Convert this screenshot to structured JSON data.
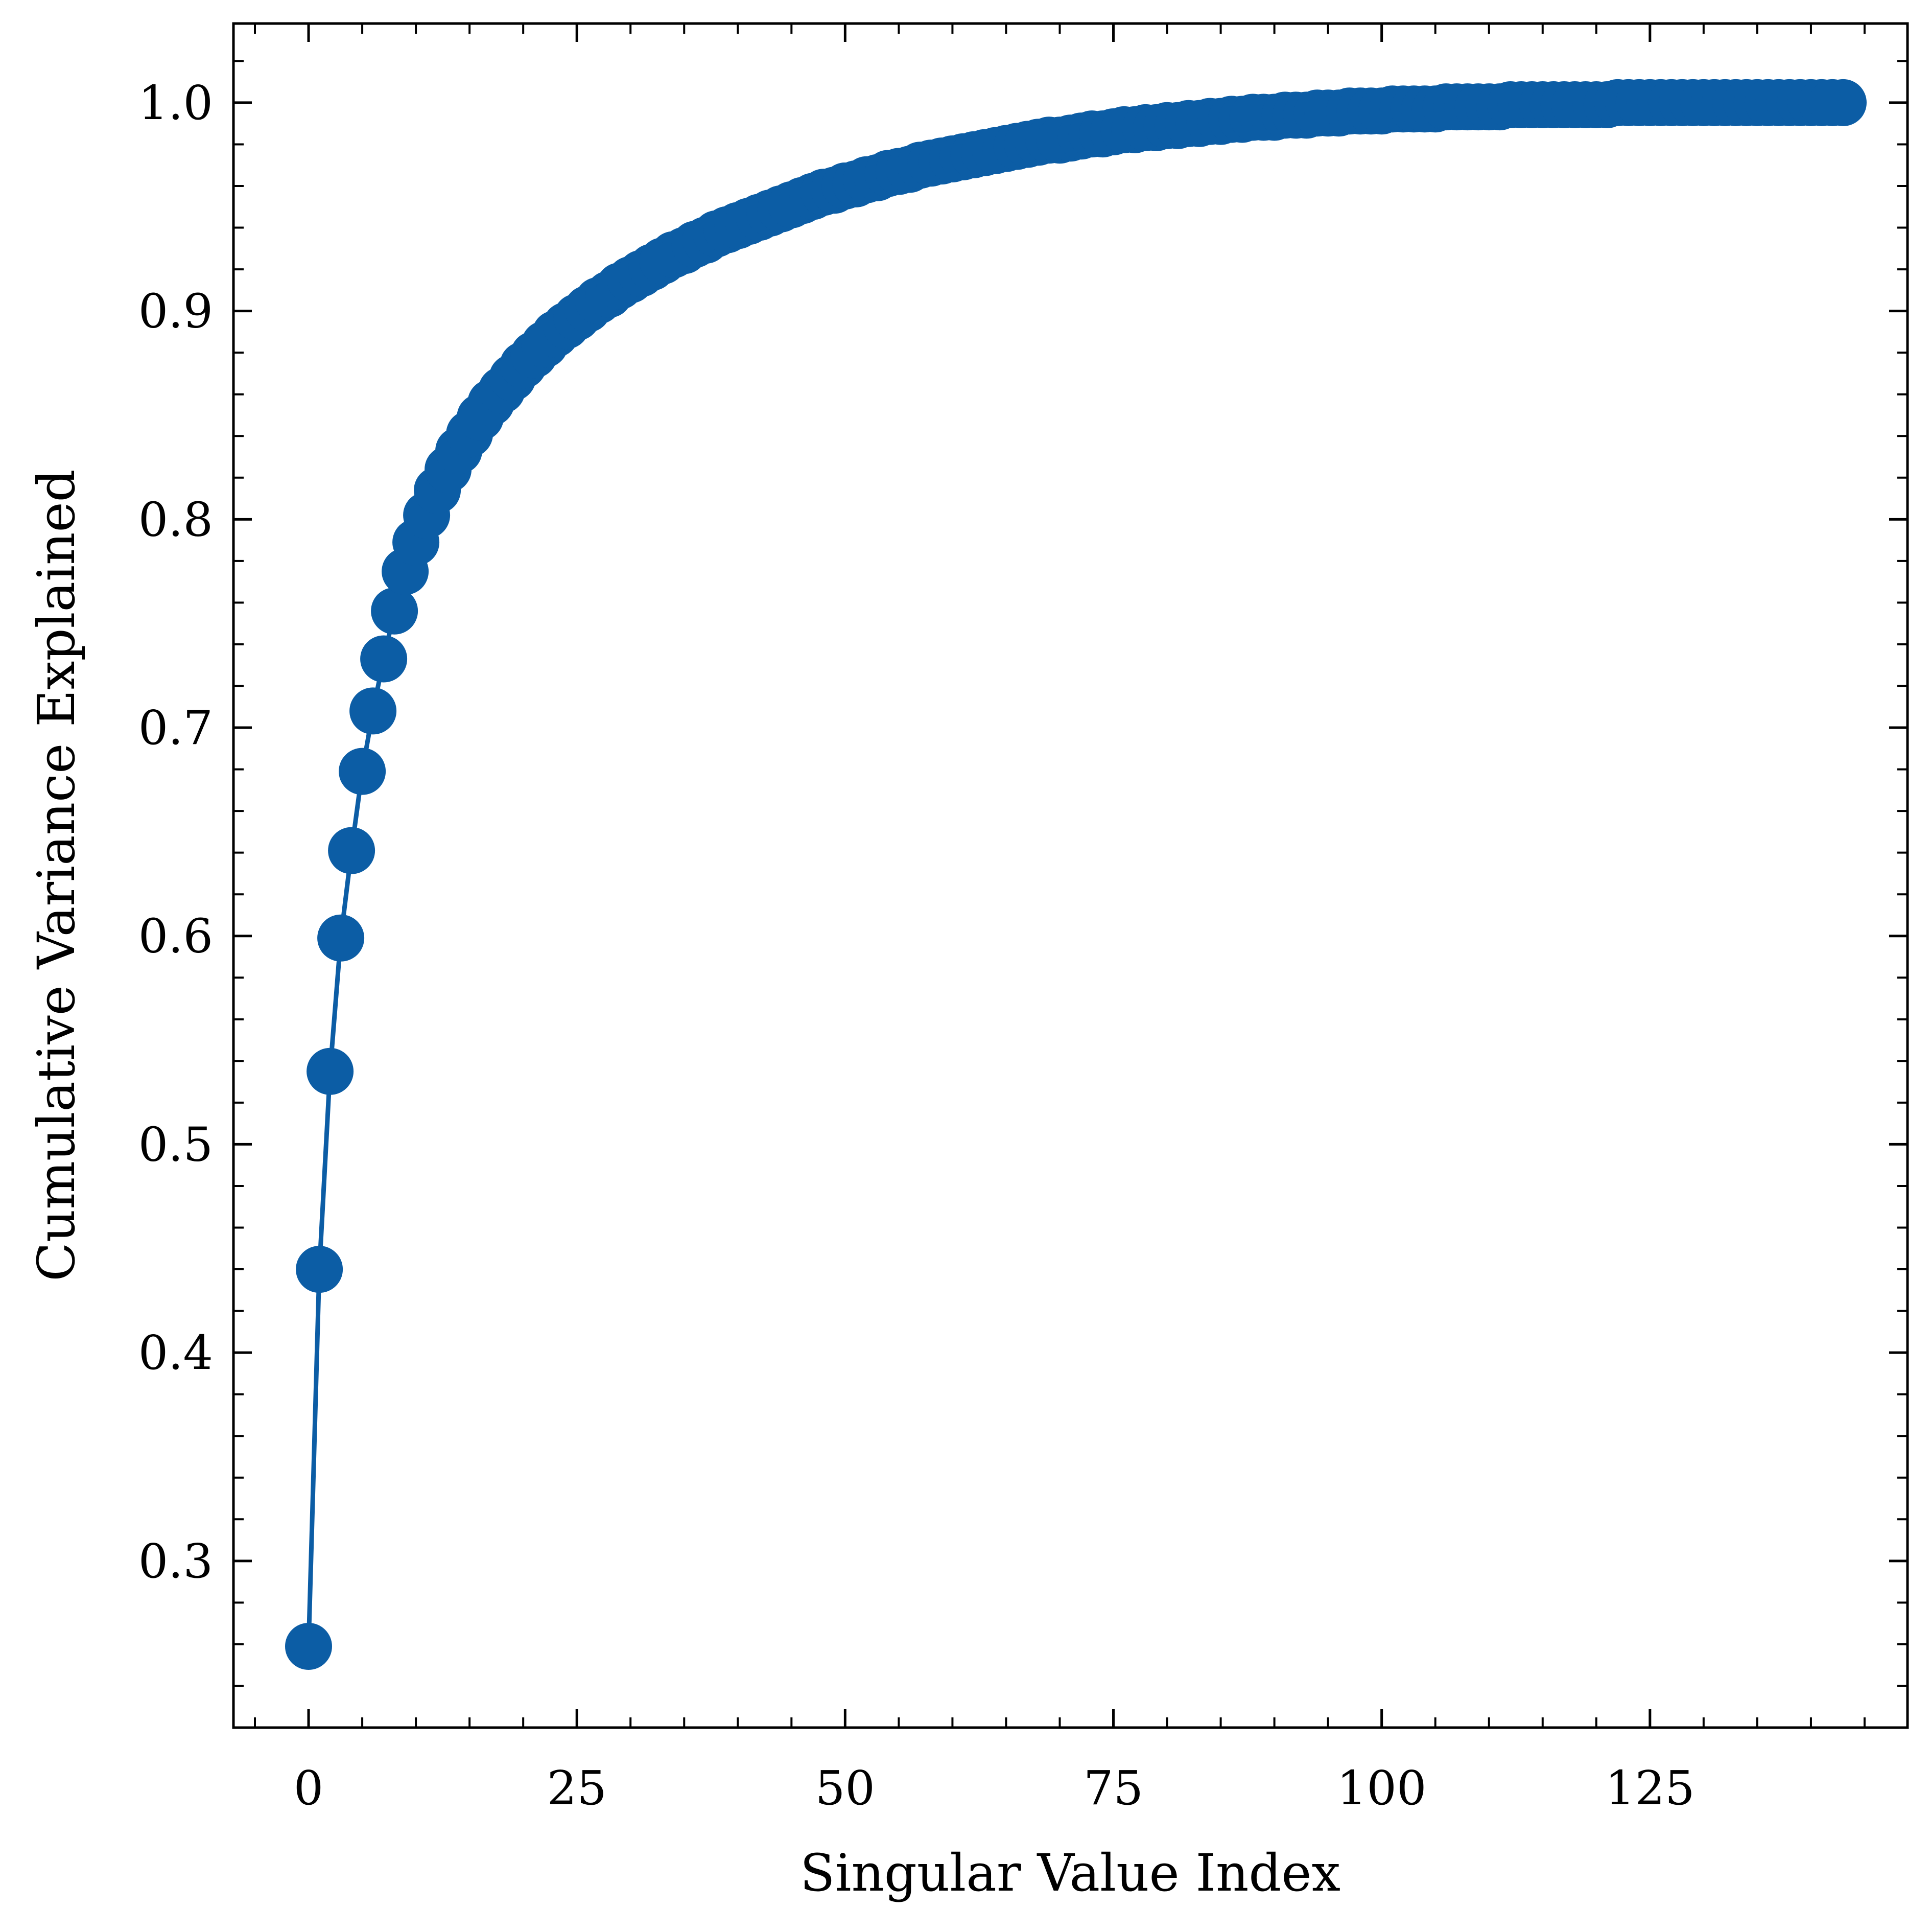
{
  "chart_data": {
    "type": "line",
    "title": "",
    "xlabel": "Singular Value Index",
    "ylabel": "Cumulative Variance Explained",
    "xlim": [
      -7,
      149
    ],
    "ylim": [
      0.22,
      1.038
    ],
    "x_ticks": [
      0,
      25,
      50,
      75,
      100,
      125
    ],
    "x_tick_labels": [
      "0",
      "25",
      "50",
      "75",
      "100",
      "125"
    ],
    "x_minor_step": 5,
    "y_ticks": [
      0.3,
      0.4,
      0.5,
      0.6,
      0.7,
      0.8,
      0.9,
      1.0
    ],
    "y_tick_labels": [
      "0.3",
      "0.4",
      "0.5",
      "0.6",
      "0.7",
      "0.8",
      "0.9",
      "1.0"
    ],
    "y_minor_step": 0.02,
    "grid": false,
    "legend": "none",
    "colors": {
      "series": "#0c5da5",
      "axes": "#000000"
    },
    "series": [
      {
        "x": [
          0,
          1,
          2,
          3,
          4,
          5,
          6,
          7,
          8,
          9,
          10,
          11,
          12,
          13,
          14,
          15,
          16,
          17,
          18,
          19,
          20,
          21,
          22,
          23,
          24,
          25,
          26,
          27,
          28,
          29,
          30,
          31,
          32,
          33,
          34,
          35,
          36,
          37,
          38,
          39,
          40,
          41,
          42,
          43,
          44,
          45,
          46,
          47,
          48,
          49,
          50,
          51,
          52,
          53,
          54,
          55,
          56,
          57,
          58,
          59,
          60,
          61,
          62,
          63,
          64,
          65,
          66,
          67,
          68,
          69,
          70,
          71,
          72,
          73,
          74,
          75,
          76,
          77,
          78,
          79,
          80,
          81,
          82,
          83,
          84,
          85,
          86,
          87,
          88,
          89,
          90,
          91,
          92,
          93,
          94,
          95,
          96,
          97,
          98,
          99,
          100,
          101,
          102,
          103,
          104,
          105,
          106,
          107,
          108,
          109,
          110,
          111,
          112,
          113,
          114,
          115,
          116,
          117,
          118,
          119,
          120,
          121,
          122,
          123,
          124,
          125,
          126,
          127,
          128,
          129,
          130,
          131,
          132,
          133,
          134,
          135,
          136,
          137,
          138,
          139,
          140,
          141,
          142,
          143
        ],
        "values": [
          0.259,
          0.44,
          0.535,
          0.599,
          0.641,
          0.679,
          0.708,
          0.733,
          0.756,
          0.775,
          0.789,
          0.802,
          0.814,
          0.824,
          0.833,
          0.841,
          0.849,
          0.856,
          0.862,
          0.868,
          0.874,
          0.879,
          0.884,
          0.889,
          0.893,
          0.897,
          0.901,
          0.905,
          0.908,
          0.912,
          0.915,
          0.918,
          0.921,
          0.924,
          0.927,
          0.929,
          0.932,
          0.934,
          0.937,
          0.939,
          0.941,
          0.943,
          0.945,
          0.947,
          0.949,
          0.951,
          0.953,
          0.955,
          0.957,
          0.958,
          0.96,
          0.961,
          0.963,
          0.964,
          0.966,
          0.967,
          0.968,
          0.97,
          0.971,
          0.972,
          0.973,
          0.974,
          0.975,
          0.976,
          0.977,
          0.978,
          0.979,
          0.98,
          0.981,
          0.982,
          0.982,
          0.983,
          0.984,
          0.985,
          0.985,
          0.986,
          0.987,
          0.987,
          0.988,
          0.988,
          0.989,
          0.989,
          0.99,
          0.99,
          0.991,
          0.991,
          0.992,
          0.992,
          0.993,
          0.993,
          0.993,
          0.994,
          0.994,
          0.994,
          0.995,
          0.995,
          0.995,
          0.996,
          0.996,
          0.996,
          0.996,
          0.997,
          0.997,
          0.997,
          0.997,
          0.997,
          0.998,
          0.998,
          0.998,
          0.998,
          0.998,
          0.998,
          0.999,
          0.999,
          0.999,
          0.999,
          0.999,
          0.999,
          0.999,
          0.999,
          0.999,
          0.999,
          1.0,
          1.0,
          1.0,
          1.0,
          1.0,
          1.0,
          1.0,
          1.0,
          1.0,
          1.0,
          1.0,
          1.0,
          1.0,
          1.0,
          1.0,
          1.0,
          1.0,
          1.0,
          1.0,
          1.0,
          1.0,
          1.0
        ]
      }
    ]
  }
}
